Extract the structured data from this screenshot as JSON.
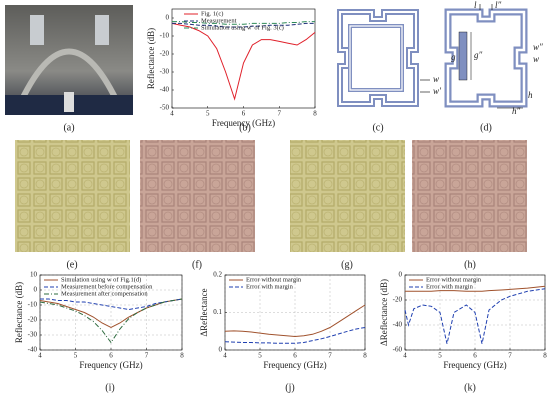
{
  "chart_data": [
    {
      "type": "line",
      "xlabel": "Frequency (GHz)",
      "ylabel": "Reflectance (dB)",
      "x": [
        4,
        4.25,
        4.5,
        4.75,
        5,
        5.25,
        5.5,
        5.75,
        6,
        6.25,
        6.5,
        6.75,
        7,
        7.25,
        7.5,
        7.75,
        8
      ],
      "xlim": [
        4,
        8
      ],
      "xticks": [
        4,
        5,
        6,
        7,
        8
      ],
      "ylim": [
        -50,
        5
      ],
      "yticks": [
        0,
        -10,
        -20,
        -30,
        -40,
        -50
      ],
      "grid": false,
      "legend": "upper center",
      "series": [
        {
          "name": "Fig. 1(c)",
          "color": "#e0202a",
          "dash": "solid",
          "values": [
            -3,
            -4,
            -5,
            -7,
            -10,
            -17,
            -30,
            -45,
            -25,
            -15,
            -12,
            -12,
            -13,
            -14,
            -15,
            -12,
            -8
          ]
        },
        {
          "name": "Measurement",
          "color": "#1f2f7a",
          "dash": "dashed",
          "values": [
            -3,
            -3,
            -3.5,
            -4,
            -4,
            -4.5,
            -5,
            -5,
            -5,
            -4.5,
            -4.5,
            -4,
            -4,
            -4,
            -3.5,
            -3,
            -3
          ]
        },
        {
          "name": "Simulation using w' of Fig. 3(c)",
          "color": "#2e8b57",
          "dash": "dashdot",
          "values": [
            -2,
            -2,
            -2.5,
            -2.5,
            -3,
            -3,
            -3.5,
            -3.5,
            -3.5,
            -3,
            -3,
            -3,
            -3,
            -2.5,
            -2.5,
            -2,
            -2
          ]
        }
      ]
    },
    {
      "type": "line",
      "xlabel": "Frequency (GHz)",
      "ylabel": "Reflectance (dB)",
      "x": [
        4,
        4.25,
        4.5,
        4.75,
        5,
        5.25,
        5.5,
        5.75,
        6,
        6.25,
        6.5,
        6.75,
        7,
        7.25,
        7.5,
        7.75,
        8
      ],
      "xlim": [
        4,
        8
      ],
      "xticks": [
        4,
        5,
        6,
        7,
        8
      ],
      "ylim": [
        -40,
        10
      ],
      "yticks": [
        10,
        0,
        -10,
        -20,
        -30,
        -40
      ],
      "grid": true,
      "legend": "upper left",
      "series": [
        {
          "name": "Simulation using w of Fig.1(d)",
          "color": "#a0522d",
          "dash": "solid",
          "values": [
            -7,
            -8,
            -9,
            -11,
            -13,
            -15,
            -18,
            -22,
            -25,
            -22,
            -18,
            -15,
            -12,
            -10,
            -8,
            -7,
            -6
          ]
        },
        {
          "name": "Measurement before compensation",
          "color": "#1f3fb0",
          "dash": "dashed",
          "values": [
            -6,
            -6,
            -7,
            -7,
            -8,
            -8,
            -9,
            -10,
            -11,
            -12,
            -13,
            -12,
            -11,
            -9,
            -8,
            -7,
            -6
          ]
        },
        {
          "name": "Measurement after compensation",
          "color": "#2e6b3f",
          "dash": "dashdot",
          "values": [
            -8,
            -9,
            -10,
            -12,
            -14,
            -17,
            -21,
            -27,
            -35,
            -26,
            -19,
            -15,
            -12,
            -10,
            -8,
            -7,
            -6
          ]
        }
      ]
    },
    {
      "type": "line",
      "xlabel": "Frequency (GHz)",
      "ylabel": "ΔReflectance",
      "x": [
        4,
        4.25,
        4.5,
        4.75,
        5,
        5.25,
        5.5,
        5.75,
        6,
        6.25,
        6.5,
        6.75,
        7,
        7.25,
        7.5,
        7.75,
        8
      ],
      "xlim": [
        4,
        8
      ],
      "xticks": [
        4,
        5,
        6,
        7,
        8
      ],
      "ylim": [
        0,
        0.2
      ],
      "yticks": [
        0,
        0.1,
        0.2
      ],
      "grid": true,
      "legend": "upper left",
      "series": [
        {
          "name": "Error without margin",
          "color": "#a0522d",
          "dash": "solid",
          "values": [
            0.05,
            0.051,
            0.05,
            0.048,
            0.045,
            0.042,
            0.04,
            0.038,
            0.036,
            0.038,
            0.042,
            0.05,
            0.06,
            0.075,
            0.09,
            0.105,
            0.12
          ]
        },
        {
          "name": "Error with margin",
          "color": "#1f3fb0",
          "dash": "dashed",
          "values": [
            0.022,
            0.021,
            0.02,
            0.02,
            0.019,
            0.019,
            0.018,
            0.018,
            0.018,
            0.02,
            0.025,
            0.03,
            0.036,
            0.043,
            0.05,
            0.056,
            0.06
          ]
        }
      ]
    },
    {
      "type": "line",
      "xlabel": "Frequency (GHz)",
      "ylabel": "ΔReflectance (dB)",
      "x": [
        4,
        4.1,
        4.25,
        4.5,
        4.75,
        5,
        5.2,
        5.4,
        5.75,
        6,
        6.2,
        6.4,
        6.75,
        7,
        7.5,
        8
      ],
      "xlim": [
        4,
        8
      ],
      "xticks": [
        4,
        5,
        6,
        7,
        8
      ],
      "ylim": [
        -60,
        0
      ],
      "yticks": [
        0,
        -20,
        -40,
        -60
      ],
      "grid": true,
      "legend": "upper left",
      "series": [
        {
          "name": "Error without margin",
          "color": "#a0522d",
          "dash": "solid",
          "values": [
            -13,
            -13,
            -13,
            -13,
            -13,
            -12.5,
            -12.5,
            -12.5,
            -13,
            -13,
            -13,
            -12.5,
            -12,
            -11.5,
            -10.5,
            -9
          ]
        },
        {
          "name": "Error with margin",
          "color": "#1f3fb0",
          "dash": "dashed",
          "values": [
            -28,
            -40,
            -27,
            -24,
            -25,
            -30,
            -55,
            -30,
            -24,
            -30,
            -55,
            -28,
            -20,
            -17,
            -13,
            -11
          ]
        }
      ]
    }
  ],
  "diagram_c": {
    "labels": [
      "w",
      "w′"
    ]
  },
  "diagram_d": {
    "labels": [
      "l",
      "l″",
      "w″",
      "w",
      "g",
      "g″",
      "h",
      "h″"
    ]
  },
  "captions": [
    "(a)",
    "(b)",
    "(c)",
    "(d)",
    "(e)",
    "(f)",
    "(g)",
    "(h)",
    "(i)",
    "(j)",
    "(k)"
  ]
}
